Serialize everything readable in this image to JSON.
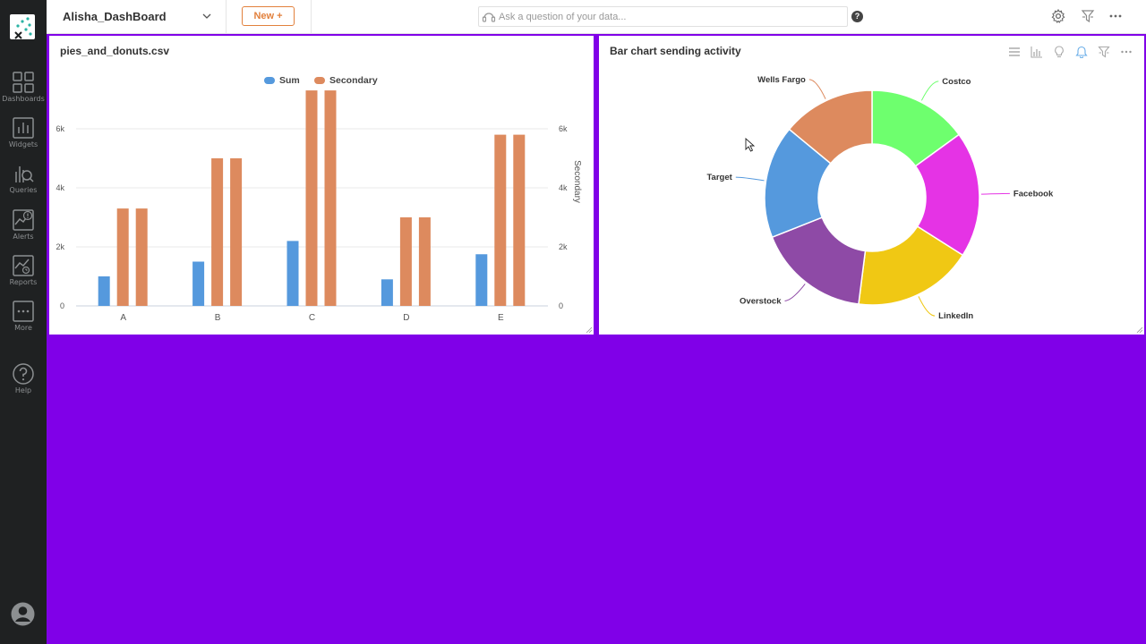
{
  "sidebar": {
    "items": [
      {
        "label": "Dashboards",
        "icon": "dashboards-icon"
      },
      {
        "label": "Widgets",
        "icon": "widgets-icon"
      },
      {
        "label": "Queries",
        "icon": "queries-icon"
      },
      {
        "label": "Alerts",
        "icon": "alerts-icon"
      },
      {
        "label": "Reports",
        "icon": "reports-icon"
      },
      {
        "label": "More",
        "icon": "more-icon"
      },
      {
        "label": "Help",
        "icon": "help-icon"
      }
    ]
  },
  "header": {
    "dashboard_title": "Alisha_DashBoard",
    "new_button": "New +",
    "ask_placeholder": "Ask a question of your data...",
    "help_glyph": "?"
  },
  "colors": {
    "background": "#8000e8",
    "sum": "#5599dd",
    "secondary": "#dd8a5e",
    "accent": "#e2813d"
  },
  "panels": {
    "left": {
      "title": "pies_and_donuts.csv"
    },
    "right": {
      "title": "Bar chart sending activity"
    }
  },
  "chart_data": [
    {
      "type": "bar",
      "categories": [
        "A",
        "B",
        "C",
        "D",
        "E"
      ],
      "series": [
        {
          "name": "Sum",
          "values": [
            1000,
            1500,
            2200,
            900,
            1750
          ],
          "color": "#5599dd"
        },
        {
          "name": "Secondary",
          "values": [
            3300,
            5000,
            7300,
            3000,
            5800
          ],
          "color": "#dd8a5e"
        },
        {
          "name": "Secondary",
          "values": [
            3300,
            5000,
            7300,
            3000,
            5800
          ],
          "color": "#dd8a5e"
        }
      ],
      "legend": [
        "Sum",
        "Secondary"
      ],
      "legend_position": "top-center",
      "yticks": [
        "0",
        "2k",
        "4k",
        "6k"
      ],
      "y2ticks": [
        "0",
        "2k",
        "4k",
        "6k"
      ],
      "ylim": [
        0,
        8000
      ],
      "y2label": "Secondary",
      "grid": true
    },
    {
      "type": "pie",
      "donut": true,
      "labels": [
        "Costco",
        "Facebook",
        "LinkedIn",
        "Overstock",
        "Target",
        "Wells Fargo"
      ],
      "values": [
        15,
        19,
        18,
        17,
        17,
        14
      ],
      "colors": [
        "#6eff6e",
        "#e533e5",
        "#f0c814",
        "#8e4aa6",
        "#5599dd",
        "#dd8a5e"
      ]
    }
  ]
}
